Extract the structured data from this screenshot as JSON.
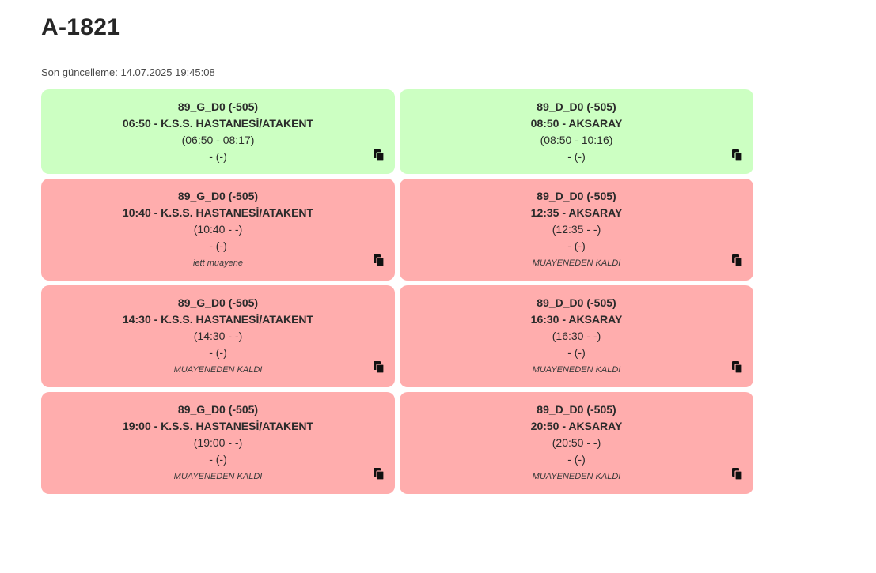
{
  "header": {
    "title": "A-1821",
    "updated": "Son güncelleme: 14.07.2025 19:45:08"
  },
  "colors": {
    "ok": "#ccffc2",
    "fail": "#ffadad"
  },
  "trips": [
    {
      "status": "ok",
      "route": "89_G_D0 (-505)",
      "departure": "06:50 - K.S.S. HASTANESİ/ATAKENT",
      "time_range": "(06:50 - 08:17)",
      "driver": "- (-)",
      "note": "",
      "icon": "copy-icon"
    },
    {
      "status": "ok",
      "route": "89_D_D0 (-505)",
      "departure": "08:50 - AKSARAY",
      "time_range": "(08:50 - 10:16)",
      "driver": "- (-)",
      "note": "",
      "icon": "copy-icon"
    },
    {
      "status": "fail",
      "route": "89_G_D0 (-505)",
      "departure": "10:40 - K.S.S. HASTANESİ/ATAKENT",
      "time_range": "(10:40 - -)",
      "driver": "- (-)",
      "note": "iett muayene",
      "icon": "copy-icon"
    },
    {
      "status": "fail",
      "route": "89_D_D0 (-505)",
      "departure": "12:35 - AKSARAY",
      "time_range": "(12:35 - -)",
      "driver": "- (-)",
      "note": "MUAYENEDEN KALDI",
      "icon": "copy-icon"
    },
    {
      "status": "fail",
      "route": "89_G_D0 (-505)",
      "departure": "14:30 - K.S.S. HASTANESİ/ATAKENT",
      "time_range": "(14:30 - -)",
      "driver": "- (-)",
      "note": "MUAYENEDEN KALDI",
      "icon": "copy-icon"
    },
    {
      "status": "fail",
      "route": "89_D_D0 (-505)",
      "departure": "16:30 - AKSARAY",
      "time_range": "(16:30 - -)",
      "driver": "- (-)",
      "note": "MUAYENEDEN KALDI",
      "icon": "copy-icon"
    },
    {
      "status": "fail",
      "route": "89_G_D0 (-505)",
      "departure": "19:00 - K.S.S. HASTANESİ/ATAKENT",
      "time_range": "(19:00 - -)",
      "driver": "- (-)",
      "note": "MUAYENEDEN KALDI",
      "icon": "copy-icon"
    },
    {
      "status": "fail",
      "route": "89_D_D0 (-505)",
      "departure": "20:50 - AKSARAY",
      "time_range": "(20:50 - -)",
      "driver": "- (-)",
      "note": "MUAYENEDEN KALDI",
      "icon": "copy-icon"
    }
  ]
}
